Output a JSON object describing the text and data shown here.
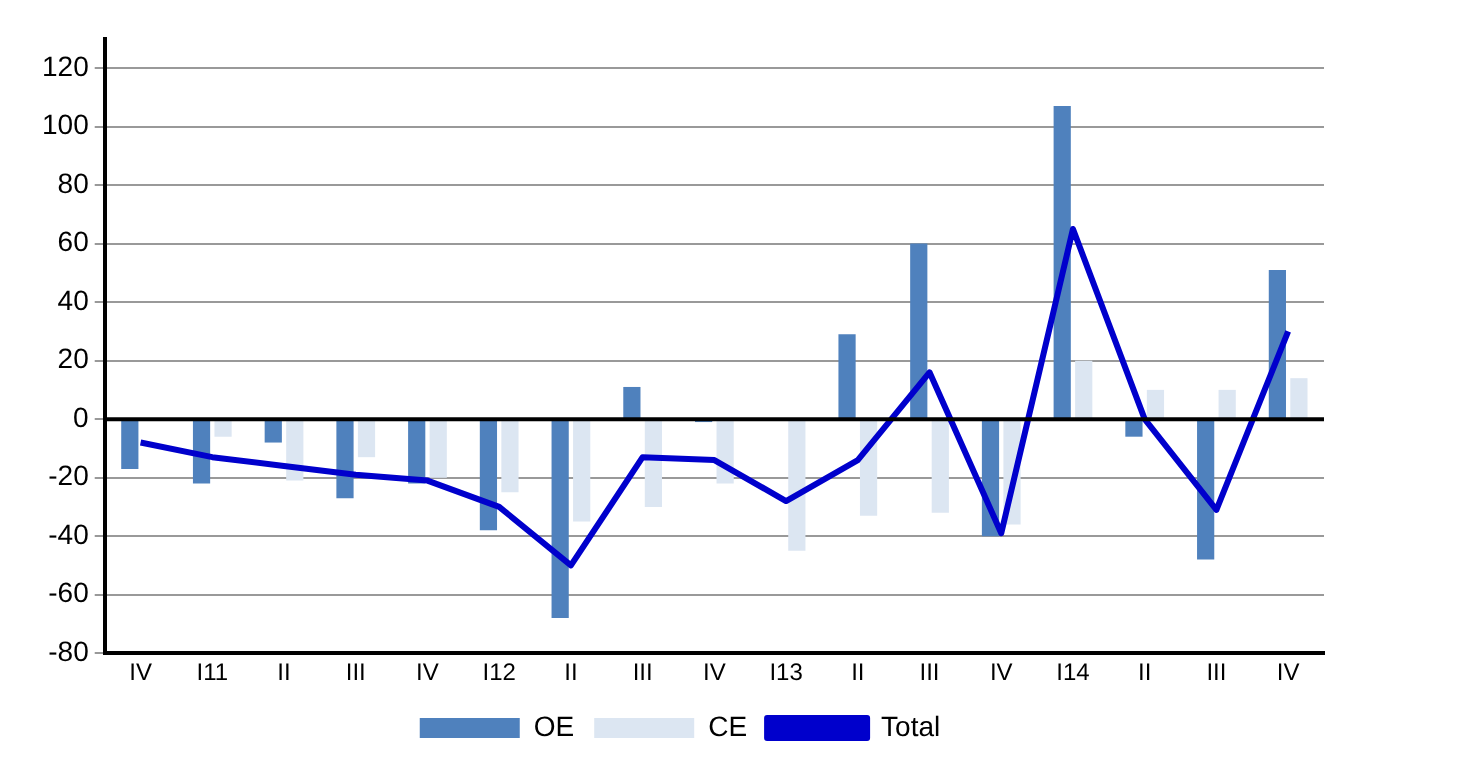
{
  "chart_data": {
    "type": "bar",
    "categories": [
      "IV",
      "I11",
      "II",
      "III",
      "IV",
      "I12",
      "II",
      "III",
      "IV",
      "I13",
      "II",
      "III",
      "IV",
      "I14",
      "II",
      "III",
      "IV"
    ],
    "series": [
      {
        "name": "OE",
        "color": "#4f81bd",
        "values": [
          -17,
          -22,
          -8,
          -27,
          -22,
          -38,
          -68,
          11,
          -1,
          0,
          29,
          60,
          -40,
          107,
          -6,
          -48,
          51
        ]
      },
      {
        "name": "CE",
        "color": "#dce6f2",
        "values": [
          null,
          -6,
          -21,
          -13,
          -20,
          -25,
          -35,
          -30,
          -22,
          -45,
          -33,
          -32,
          -36,
          20,
          10,
          10,
          14
        ]
      },
      {
        "name": "Total",
        "type": "line",
        "color": "#0000cc",
        "values": [
          -8,
          -13,
          -16,
          -19,
          -21,
          -30,
          -50,
          -13,
          -14,
          -28,
          -14,
          16,
          -39,
          65,
          0,
          -31,
          30
        ]
      }
    ],
    "ylim": [
      -80,
      130
    ],
    "yticks": [
      -80,
      -60,
      -40,
      -20,
      0,
      20,
      40,
      60,
      80,
      100,
      120
    ],
    "grid": "y",
    "legend": "bottom",
    "marker": "none"
  }
}
